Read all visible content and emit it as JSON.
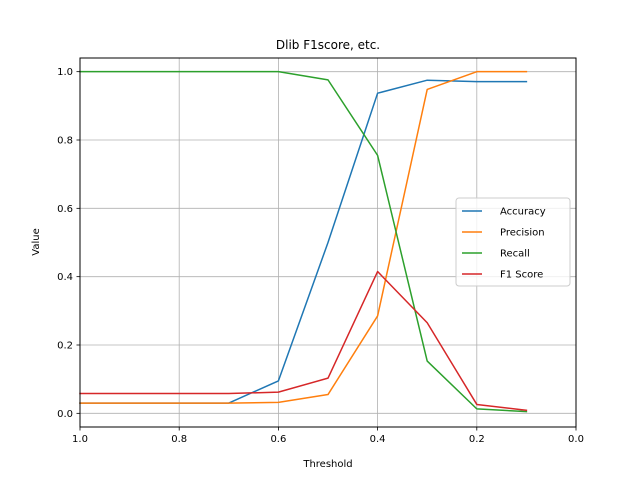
{
  "chart_data": {
    "type": "line",
    "title": "Dlib F1score, etc.",
    "xlabel": "Threshold",
    "ylabel": "Value",
    "xlim": [
      1.0,
      0.0
    ],
    "ylim": [
      -0.04,
      1.04
    ],
    "x_inverted": true,
    "grid": true,
    "legend_position": "center-right",
    "x_ticks": [
      "1.0",
      "0.8",
      "0.6",
      "0.4",
      "0.2",
      "0.0"
    ],
    "y_ticks": [
      "0.0",
      "0.2",
      "0.4",
      "0.6",
      "0.8",
      "1.0"
    ],
    "x": [
      1.0,
      0.9,
      0.8,
      0.7,
      0.6,
      0.5,
      0.4,
      0.3,
      0.2,
      0.1
    ],
    "series": [
      {
        "name": "Accuracy",
        "color": "#1f77b4",
        "values": [
          0.03,
          0.03,
          0.03,
          0.03,
          0.095,
          0.5,
          0.937,
          0.975,
          0.971,
          0.971
        ]
      },
      {
        "name": "Precision",
        "color": "#ff7f0e",
        "values": [
          0.03,
          0.03,
          0.03,
          0.03,
          0.032,
          0.055,
          0.285,
          0.948,
          1.0,
          1.0
        ]
      },
      {
        "name": "Recall",
        "color": "#2ca02c",
        "values": [
          1.0,
          1.0,
          1.0,
          1.0,
          1.0,
          0.976,
          0.755,
          0.153,
          0.013,
          0.005
        ]
      },
      {
        "name": "F1 Score",
        "color": "#d62728",
        "values": [
          0.058,
          0.058,
          0.058,
          0.058,
          0.062,
          0.103,
          0.415,
          0.265,
          0.026,
          0.009
        ]
      }
    ]
  }
}
